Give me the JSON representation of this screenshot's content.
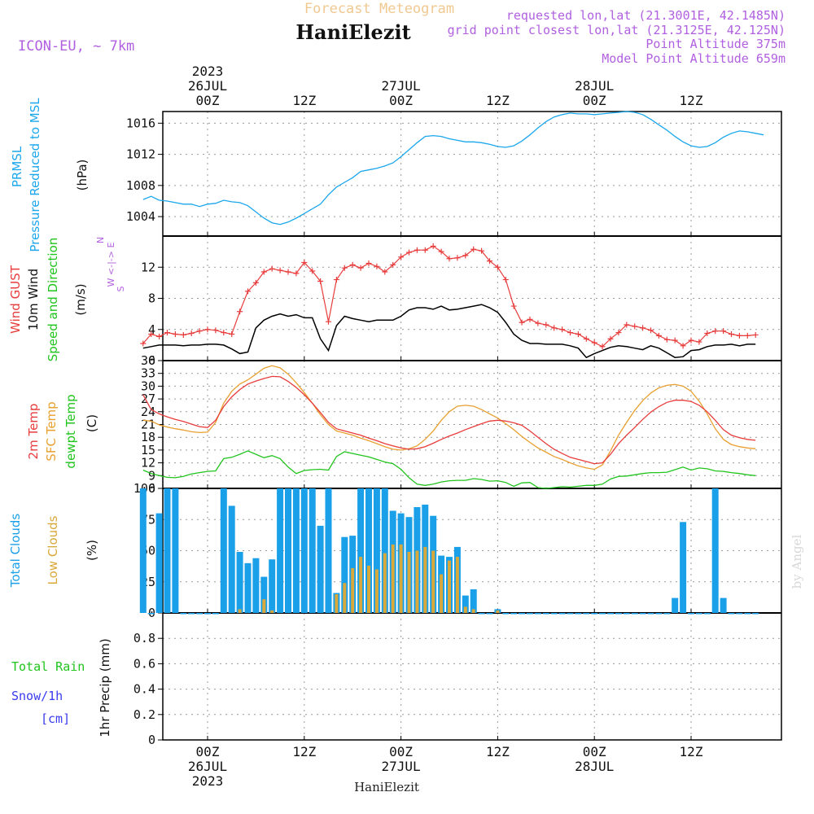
{
  "header": {
    "subtitle": "Forecast Meteogram",
    "location": "HaniElezit",
    "model": "ICON-EU, ~ 7km",
    "info_lines": [
      "requested lon,lat (21.3001E, 42.1485N)",
      "grid point closest lon,lat (21.3125E, 42.125N)",
      "Point Altitude 375m",
      "Model Point Altitude 659m"
    ],
    "footer_location": "HaniElezit",
    "watermark": "by Angel"
  },
  "time_axis": {
    "top_labels": [
      {
        "h": 0,
        "lines": [
          "2023",
          "26JUL",
          "00Z"
        ]
      },
      {
        "h": 12,
        "lines": [
          "12Z"
        ]
      },
      {
        "h": 24,
        "lines": [
          "27JUL",
          "00Z"
        ]
      },
      {
        "h": 36,
        "lines": [
          "12Z"
        ]
      },
      {
        "h": 48,
        "lines": [
          "28JUL",
          "00Z"
        ]
      },
      {
        "h": 60,
        "lines": [
          "12Z"
        ]
      }
    ],
    "bottom_labels": [
      {
        "h": 0,
        "lines": [
          "00Z",
          "26JUL",
          "2023"
        ]
      },
      {
        "h": 12,
        "lines": [
          "12Z"
        ]
      },
      {
        "h": 24,
        "lines": [
          "00Z",
          "27JUL"
        ]
      },
      {
        "h": 36,
        "lines": [
          "12Z"
        ]
      },
      {
        "h": 48,
        "lines": [
          "00Z",
          "28JUL"
        ]
      },
      {
        "h": 60,
        "lines": [
          "12Z"
        ]
      }
    ]
  },
  "panel_labels": {
    "pressure": {
      "name": "PRMSL",
      "desc": "Pressure Reduced to MSL",
      "unit": "(hPa)"
    },
    "wind": {
      "gust": "Wind GUST",
      "wind": "10m Wind",
      "dir": "Speed and Direction",
      "unit": "(m/s)",
      "compass": [
        "N",
        "W <-|-> E",
        "S"
      ]
    },
    "temp": {
      "t2m": "2m Temp",
      "sfc": "SFC Temp",
      "dewpt": "dewpt Temp",
      "unit": "(C)"
    },
    "clouds": {
      "total": "Total Clouds",
      "low": "Low Clouds",
      "unit": "(%)"
    },
    "precip": {
      "rain": "Total Rain",
      "snow": "Snow/1h",
      "snow_unit": "[cm]",
      "axis": "1hr Precip (mm)"
    }
  },
  "colors": {
    "pressure": "#1aa7ec",
    "gust": "#e83c3c",
    "wind": "#000000",
    "t2m": "#e83c3c",
    "sfc": "#e8a030",
    "dewpt": "#22c41e",
    "total_clouds": "#1aa0e8",
    "low_clouds": "#d9a83a",
    "rain": "#22c41e",
    "snow": "#3a3aee",
    "model": "#b060e0",
    "subtitle": "#f0c890"
  },
  "chart_data": [
    {
      "type": "line",
      "name": "pressure",
      "ylabel": "(hPa)",
      "ylim": [
        1001.5,
        1017.5
      ],
      "yticks": [
        1004,
        1008,
        1012,
        1016
      ],
      "x_hours": [
        -8,
        -7,
        -6,
        -5,
        -4,
        -3,
        -2,
        -1,
        0,
        1,
        2,
        3,
        4,
        5,
        6,
        7,
        8,
        9,
        10,
        11,
        12,
        13,
        14,
        15,
        16,
        17,
        18,
        19,
        20,
        21,
        22,
        23,
        24,
        25,
        26,
        27,
        28,
        29,
        30,
        31,
        32,
        33,
        34,
        35,
        36,
        37,
        38,
        39,
        40,
        41,
        42,
        43,
        44,
        45,
        46,
        47,
        48,
        49,
        50,
        51,
        52,
        53,
        54,
        55,
        56,
        57,
        58,
        59,
        60,
        61,
        62,
        63,
        64,
        65,
        66,
        67,
        68,
        69,
        70,
        71,
        72,
        73,
        74
      ],
      "series": [
        {
          "values": [
            1006.2,
            1006.6,
            1006.1,
            1006,
            1005.8,
            1005.6,
            1005.6,
            1005.3,
            1005.6,
            1005.7,
            1006.1,
            1005.9,
            1005.8,
            1005.4,
            1004.6,
            1003.8,
            1003.2,
            1003,
            1003.3,
            1003.8,
            1004.4,
            1005,
            1005.6,
            1006.8,
            1007.8,
            1008.4,
            1009,
            1009.8,
            1010,
            1010.2,
            1010.5,
            1010.9,
            1011.7,
            1012.6,
            1013.5,
            1014.3,
            1014.4,
            1014.3,
            1014,
            1013.8,
            1013.6,
            1013.6,
            1013.5,
            1013.3,
            1013,
            1012.9,
            1013.1,
            1013.7,
            1014.5,
            1015.4,
            1016.2,
            1016.8,
            1017.1,
            1017.3,
            1017.2,
            1017.2,
            1017.1,
            1017.2,
            1017.3,
            1017.4,
            1017.5,
            1017.4,
            1017.1,
            1016.5,
            1015.8,
            1015.1,
            1014.3,
            1013.6,
            1013.1,
            1012.9,
            1013,
            1013.5,
            1014.2,
            1014.7,
            1015,
            1014.9,
            1014.7,
            1014.5
          ]
        }
      ]
    },
    {
      "type": "line",
      "name": "wind",
      "ylabel": "(m/s)",
      "ylim": [
        0,
        16
      ],
      "yticks": [
        0,
        4,
        8,
        12
      ],
      "x_hours": [
        -8,
        -7,
        -6,
        -5,
        -4,
        -3,
        -2,
        -1,
        0,
        1,
        2,
        3,
        4,
        5,
        6,
        7,
        8,
        9,
        10,
        11,
        12,
        13,
        14,
        15,
        16,
        17,
        18,
        19,
        20,
        21,
        22,
        23,
        24,
        25,
        26,
        27,
        28,
        29,
        30,
        31,
        32,
        33,
        34,
        35,
        36,
        37,
        38,
        39,
        40,
        41,
        42,
        43,
        44,
        45,
        46,
        47,
        48,
        49,
        50,
        51,
        52,
        53,
        54,
        55,
        56,
        57,
        58,
        59,
        60,
        61,
        62,
        63,
        64,
        65,
        66,
        67,
        68,
        69,
        70,
        71,
        72,
        73,
        74
      ],
      "series": [
        {
          "name": "Wind GUST",
          "values": [
            2.2,
            3.4,
            3.1,
            3.6,
            3.4,
            3.3,
            3.5,
            3.8,
            4,
            3.9,
            3.6,
            3.4,
            6.3,
            8.9,
            10,
            11.4,
            11.8,
            11.6,
            11.4,
            11.2,
            12.6,
            11.5,
            10.2,
            5,
            10.4,
            11.9,
            12.3,
            11.9,
            12.5,
            12.1,
            11.4,
            12.3,
            13.3,
            13.9,
            14.2,
            14.2,
            14.7,
            14,
            13.1,
            13.2,
            13.5,
            14.3,
            14.1,
            12.8,
            12,
            10.4,
            7,
            4.9,
            5.3,
            4.8,
            4.6,
            4.2,
            4,
            3.6,
            3.4,
            2.8,
            2.3,
            1.8,
            2.8,
            3.6,
            4.6,
            4.4,
            4.2,
            3.9,
            3.2,
            2.7,
            2.6,
            1.9,
            2.6,
            2.4,
            3.5,
            3.8,
            3.8,
            3.4,
            3.2,
            3.2,
            3.3
          ]
        },
        {
          "name": "10m Wind",
          "values": [
            1.6,
            1.8,
            2,
            2,
            2,
            1.9,
            2,
            2,
            2.1,
            2.1,
            2,
            1.5,
            0.9,
            1.1,
            4.2,
            5.2,
            5.7,
            6,
            5.7,
            5.9,
            5.5,
            5.5,
            2.8,
            1.3,
            4.5,
            5.7,
            5.4,
            5.2,
            5,
            5.2,
            5.2,
            5.2,
            5.7,
            6.5,
            6.8,
            6.8,
            6.6,
            7,
            6.5,
            6.6,
            6.8,
            7,
            7.2,
            6.8,
            6.2,
            4.9,
            3.4,
            2.6,
            2.2,
            2.2,
            2.1,
            2.1,
            2.1,
            1.9,
            1.6,
            0.4,
            0.9,
            1.3,
            1.7,
            1.9,
            1.8,
            1.6,
            1.4,
            1.9,
            1.6,
            1,
            0.4,
            0.5,
            1.3,
            1.4,
            1.8,
            2,
            2,
            2.1,
            1.9,
            2.1,
            2.1
          ]
        }
      ]
    },
    {
      "type": "line",
      "name": "temperature",
      "ylabel": "(C)",
      "ylim": [
        6,
        36
      ],
      "yticks": [
        6,
        9,
        12,
        15,
        18,
        21,
        24,
        27,
        30,
        33,
        36
      ],
      "x_hours": [
        -8,
        -7,
        -6,
        -5,
        -4,
        -3,
        -2,
        -1,
        0,
        1,
        2,
        3,
        4,
        5,
        6,
        7,
        8,
        9,
        10,
        11,
        12,
        13,
        14,
        15,
        16,
        17,
        18,
        19,
        20,
        21,
        22,
        23,
        24,
        25,
        26,
        27,
        28,
        29,
        30,
        31,
        32,
        33,
        34,
        35,
        36,
        37,
        38,
        39,
        40,
        41,
        42,
        43,
        44,
        45,
        46,
        47,
        48,
        49,
        50,
        51,
        52,
        53,
        54,
        55,
        56,
        57,
        58,
        59,
        60,
        61,
        62,
        63,
        64,
        65,
        66,
        67,
        68,
        69,
        70,
        71,
        72,
        73,
        74
      ],
      "series": [
        {
          "name": "2m Temp",
          "values": [
            28,
            24.5,
            23.5,
            22.8,
            22.2,
            21.7,
            21.1,
            20.5,
            20.3,
            22,
            25.2,
            27.5,
            29.2,
            30.5,
            31.2,
            31.8,
            32.3,
            32.2,
            31.1,
            29.7,
            28,
            26,
            23.8,
            21.5,
            20,
            19.5,
            19,
            18.5,
            17.8,
            17.2,
            16.5,
            16,
            15.5,
            15.2,
            15.3,
            15.8,
            16.6,
            17.5,
            18.3,
            19,
            19.8,
            20.5,
            21.2,
            21.8,
            22,
            21.8,
            21.4,
            20.8,
            19.5,
            18,
            16.5,
            15.2,
            14.2,
            13.3,
            12.8,
            12.3,
            11.8,
            12,
            14,
            16.5,
            18.5,
            20.3,
            22.2,
            23.9,
            25.2,
            26.2,
            26.7,
            26.7,
            26.4,
            25.5,
            24,
            22,
            19.8,
            18.5,
            17.9,
            17.5,
            17.3
          ]
        },
        {
          "name": "SFC Temp",
          "values": [
            22,
            21.8,
            20.9,
            20.4,
            20,
            19.7,
            19.3,
            19.1,
            19.2,
            21.5,
            26,
            28.8,
            30.5,
            31.5,
            32.8,
            34.2,
            34.8,
            34.3,
            32.8,
            30.8,
            28.5,
            26,
            23.3,
            21,
            19.5,
            19,
            18.5,
            17.8,
            17.2,
            16.5,
            15.8,
            15.2,
            15,
            15.3,
            16,
            17.5,
            19.5,
            22,
            24,
            25.3,
            25.5,
            25.3,
            24.5,
            23.5,
            22.5,
            21.2,
            19.8,
            18.2,
            16.8,
            15.5,
            14.5,
            13.5,
            12.8,
            12,
            11.3,
            10.8,
            10.5,
            11.5,
            14.8,
            18.5,
            21.5,
            24.3,
            26.6,
            28.4,
            29.6,
            30.2,
            30.4,
            30,
            28.8,
            26.5,
            23.5,
            20,
            17.5,
            16.3,
            15.8,
            15.5,
            15.3
          ]
        },
        {
          "name": "dewpt Temp",
          "values": [
            10.3,
            9.5,
            9,
            8.6,
            8.5,
            8.8,
            9.4,
            9.7,
            10,
            10.1,
            13,
            13.3,
            14,
            14.8,
            14,
            13.2,
            13.7,
            13,
            11,
            9.5,
            10.2,
            10.4,
            10.5,
            10.3,
            13.5,
            14.6,
            14.2,
            13.8,
            13.4,
            12.8,
            12.2,
            11.8,
            10.5,
            8.5,
            7,
            6.7,
            7,
            7.5,
            7.8,
            7.9,
            7.9,
            8.3,
            8.1,
            7.7,
            7.8,
            7.4,
            6.5,
            7.3,
            7.4,
            6.2,
            6,
            6.2,
            6.4,
            6.3,
            6.5,
            6.7,
            6.7,
            7,
            8.2,
            8.8,
            8.9,
            9.2,
            9.5,
            9.7,
            9.7,
            9.8,
            10.4,
            11,
            10.3,
            10.8,
            10.6,
            10.1,
            10,
            9.7,
            9.5,
            9.2,
            9
          ]
        }
      ]
    },
    {
      "type": "bar",
      "name": "clouds",
      "ylabel": "(%)",
      "ylim": [
        0,
        100
      ],
      "yticks": [
        0,
        25,
        50,
        75,
        100
      ],
      "x_hours": [
        -8,
        -7,
        -6,
        -5,
        -4,
        -3,
        -2,
        -1,
        0,
        1,
        2,
        3,
        4,
        5,
        6,
        7,
        8,
        9,
        10,
        11,
        12,
        13,
        14,
        15,
        16,
        17,
        18,
        19,
        20,
        21,
        22,
        23,
        24,
        25,
        26,
        27,
        28,
        29,
        30,
        31,
        32,
        33,
        34,
        35,
        36,
        37,
        38,
        39,
        40,
        41,
        42,
        43,
        44,
        45,
        46,
        47,
        48,
        49,
        50,
        51,
        52,
        53,
        54,
        55,
        56,
        57,
        58,
        59,
        60,
        61,
        62,
        63,
        64,
        65,
        66,
        67,
        68,
        69,
        70,
        71,
        72,
        73,
        74
      ],
      "series": [
        {
          "name": "Total Clouds",
          "values": [
            100,
            0,
            80,
            100,
            100,
            0,
            0,
            0,
            0,
            0,
            100,
            86,
            49,
            40,
            44,
            29,
            43,
            100,
            100,
            100,
            100,
            100,
            70,
            100,
            16,
            61,
            62,
            100,
            100,
            100,
            100,
            82,
            80,
            77,
            85,
            87,
            78,
            46,
            45,
            53,
            14,
            19,
            0,
            0,
            3,
            0,
            0,
            0,
            0,
            0,
            0,
            0,
            0,
            0,
            0,
            0,
            0,
            0,
            0,
            0,
            0,
            0,
            0,
            0,
            0,
            0,
            12,
            73,
            0,
            0,
            0,
            100,
            12,
            0,
            0,
            0,
            0
          ]
        },
        {
          "name": "Low Clouds",
          "values": [
            0,
            0,
            0,
            0,
            0,
            0,
            0,
            0,
            0,
            0,
            0,
            0,
            3,
            0,
            0,
            11,
            2,
            0,
            0,
            0,
            0,
            0,
            0,
            0,
            15,
            24,
            36,
            45,
            38,
            35,
            48,
            55,
            55,
            49,
            50,
            53,
            50,
            31,
            42,
            45,
            5,
            3,
            0,
            0,
            2,
            0,
            0,
            0,
            0,
            0,
            0,
            0,
            0,
            0,
            0,
            0,
            0,
            0,
            0,
            0,
            0,
            0,
            0,
            0,
            0,
            0,
            0,
            0,
            0,
            0,
            0,
            0,
            0,
            0,
            0,
            0,
            0
          ]
        }
      ]
    },
    {
      "type": "bar",
      "name": "precipitation",
      "ylabel": "1hr Precip (mm)",
      "ylim": [
        0,
        1
      ],
      "yticks": [
        0,
        0.2,
        0.4,
        0.6,
        0.8
      ],
      "series": [
        {
          "name": "Total Rain",
          "values": []
        },
        {
          "name": "Snow/1h",
          "values": []
        }
      ]
    }
  ]
}
